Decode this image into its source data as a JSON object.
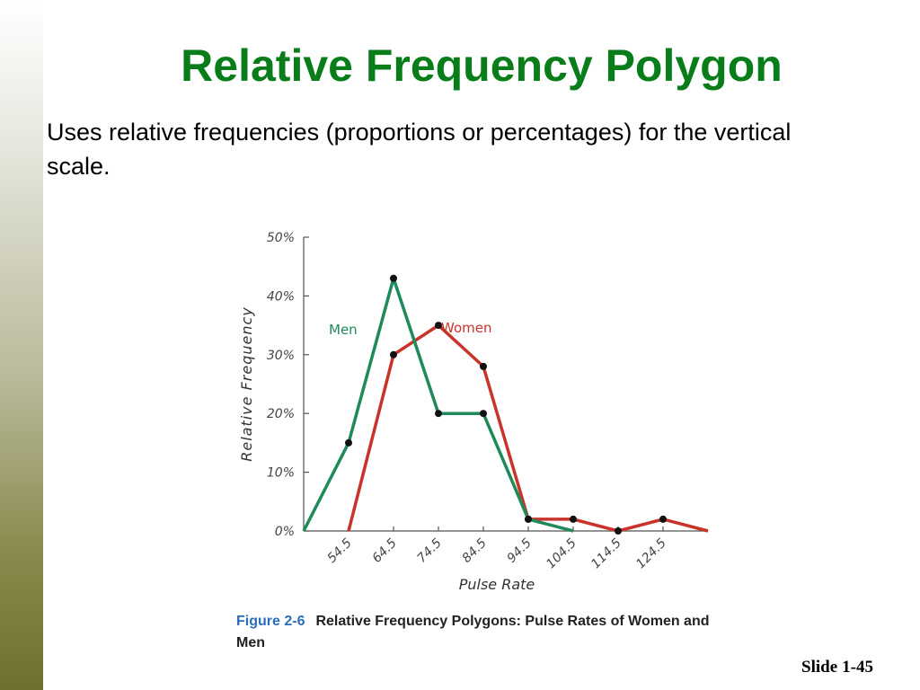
{
  "slide": {
    "title": "Relative Frequency Polygon",
    "body": "Uses relative frequencies (proportions or percentages) for the vertical scale.",
    "number_prefix": "Slide",
    "number": "1-45"
  },
  "figure": {
    "number": "Figure 2-6",
    "caption": "Relative Frequency Polygons: Pulse Rates of Women and Men"
  },
  "colors": {
    "title": "#0a7d1b",
    "men": "#1e8a5a",
    "women": "#c9342a",
    "caption_accent": "#2a6ebb"
  },
  "chart_data": {
    "type": "line",
    "xlabel": "Pulse Rate",
    "ylabel": "Relative Frequency",
    "x_ticks": [
      54.5,
      64.5,
      74.5,
      84.5,
      94.5,
      104.5,
      114.5,
      124.5
    ],
    "x_tick_labels": [
      "54.5",
      "64.5",
      "74.5",
      "84.5",
      "94.5",
      "104.5",
      "114.5",
      "124.5"
    ],
    "y_ticks": [
      0,
      10,
      20,
      30,
      40,
      50
    ],
    "y_tick_labels": [
      "0%",
      "10%",
      "20%",
      "30%",
      "40%",
      "50%"
    ],
    "xlim": [
      44.5,
      134.5
    ],
    "ylim": [
      0,
      50
    ],
    "series": [
      {
        "name": "Men",
        "color": "#1e8a5a",
        "x": [
          44.5,
          54.5,
          64.5,
          74.5,
          84.5,
          94.5,
          104.5
        ],
        "y": [
          0,
          15,
          43,
          20,
          20,
          2,
          0
        ],
        "markers": [
          false,
          true,
          true,
          true,
          true,
          true,
          false
        ]
      },
      {
        "name": "Women",
        "color": "#c9342a",
        "x": [
          54.5,
          64.5,
          74.5,
          84.5,
          94.5,
          104.5,
          114.5,
          124.5,
          134.5
        ],
        "y": [
          0,
          30,
          35,
          28,
          2,
          2,
          0,
          2,
          0
        ],
        "markers": [
          false,
          true,
          true,
          true,
          true,
          true,
          true,
          true,
          false
        ]
      }
    ]
  }
}
